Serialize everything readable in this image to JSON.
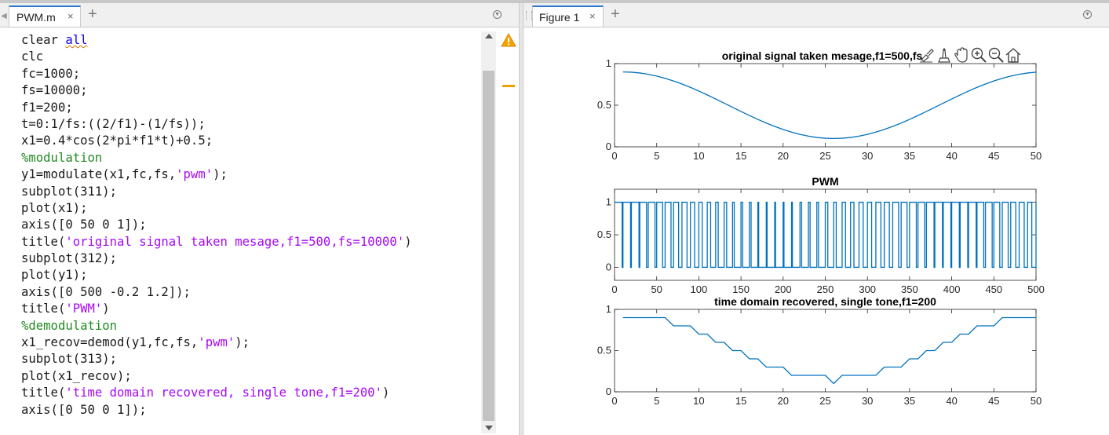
{
  "editor": {
    "tab_label": "PWM.m",
    "close_glyph": "×",
    "new_tab_glyph": "+",
    "code_lines": [
      "clear all",
      "clc",
      "fc=1000;",
      "fs=10000;",
      "f1=200;",
      "t=0:1/fs:((2/f1)-(1/fs));",
      "x1=0.4*cos(2*pi*f1*t)+0.5;",
      "%modulation",
      "y1=modulate(x1,fc,fs,'pwm');",
      "subplot(311);",
      "plot(x1);",
      "axis([0 50 0 1]);",
      "title('original signal taken mesage,f1=500,fs=10000')",
      "subplot(312);",
      "plot(y1);",
      "axis([0 500 -0.2 1.2]);",
      "title('PWM')",
      "%demodulation",
      "x1_recov=demod(y1,fc,fs,'pwm');",
      "subplot(313);",
      "plot(x1_recov);",
      "title('time domain recovered, single tone,f1=200')",
      "axis([0 50 0 1]);"
    ],
    "warning_icon": "warning-icon",
    "colors": {
      "string": "#a709f5",
      "comment": "#228b22",
      "keyword": "#0e00ff",
      "tab_accent": "#2a77c9"
    }
  },
  "figure": {
    "tab_label": "Figure 1",
    "close_glyph": "×",
    "new_tab_glyph": "+",
    "toolbar_icons": [
      "brush-icon",
      "data-tips-icon",
      "pan-icon",
      "zoom-in-icon",
      "zoom-out-icon",
      "home-icon"
    ],
    "line_color": "#0072bd"
  },
  "chart_data": [
    {
      "type": "line",
      "title": "original signal taken mesage,f1=500,fs",
      "xlim": [
        0,
        50
      ],
      "ylim": [
        0,
        1
      ],
      "xticks": [
        "0",
        "5",
        "10",
        "15",
        "20",
        "25",
        "30",
        "35",
        "40",
        "45",
        "50"
      ],
      "yticks": [
        "0",
        "0.5",
        "1"
      ],
      "series": [
        {
          "x_start": 1,
          "x_end": 50,
          "formula": "0.4*cos(2*pi*200*(n-1)/10000)+0.5",
          "y_first": 0.9,
          "y_min": 0.1,
          "y_min_at": 26
        }
      ]
    },
    {
      "type": "line",
      "title": "PWM",
      "xlim": [
        0,
        500
      ],
      "ylim": [
        -0.2,
        1.2
      ],
      "xticks": [
        "0",
        "50",
        "100",
        "150",
        "200",
        "250",
        "300",
        "350",
        "400",
        "450",
        "500"
      ],
      "yticks": [
        "0",
        "0.5",
        "1"
      ],
      "series": [
        {
          "low": 0,
          "high": 1,
          "period_samples": 10,
          "pulse_widths": [
            9,
            9,
            9,
            8,
            8,
            7,
            7,
            6,
            6,
            5,
            4,
            4,
            3,
            3,
            2,
            2,
            2,
            1,
            1,
            1,
            1,
            1,
            2,
            2,
            2,
            3,
            3,
            4,
            4,
            5,
            5,
            6,
            6,
            7,
            7,
            8,
            8,
            9,
            9,
            9,
            9,
            9,
            9,
            8,
            8,
            7,
            7,
            6,
            6,
            5
          ]
        }
      ]
    },
    {
      "type": "line",
      "title": "time domain recovered, single tone,f1=200",
      "xlim": [
        0,
        50
      ],
      "ylim": [
        0,
        1
      ],
      "xticks": [
        "0",
        "5",
        "10",
        "15",
        "20",
        "25",
        "30",
        "35",
        "40",
        "45",
        "50"
      ],
      "yticks": [
        "0",
        "0.5",
        "1"
      ],
      "series": [
        {
          "x_start": 1,
          "values": [
            0.9,
            0.9,
            0.9,
            0.9,
            0.9,
            0.9,
            0.8,
            0.8,
            0.8,
            0.7,
            0.7,
            0.6,
            0.6,
            0.5,
            0.5,
            0.4,
            0.4,
            0.3,
            0.3,
            0.3,
            0.2,
            0.2,
            0.2,
            0.2,
            0.2,
            0.1,
            0.2,
            0.2,
            0.2,
            0.2,
            0.2,
            0.3,
            0.3,
            0.3,
            0.4,
            0.4,
            0.5,
            0.5,
            0.6,
            0.6,
            0.7,
            0.7,
            0.8,
            0.8,
            0.8,
            0.9,
            0.9,
            0.9,
            0.9,
            0.9
          ]
        }
      ]
    }
  ]
}
